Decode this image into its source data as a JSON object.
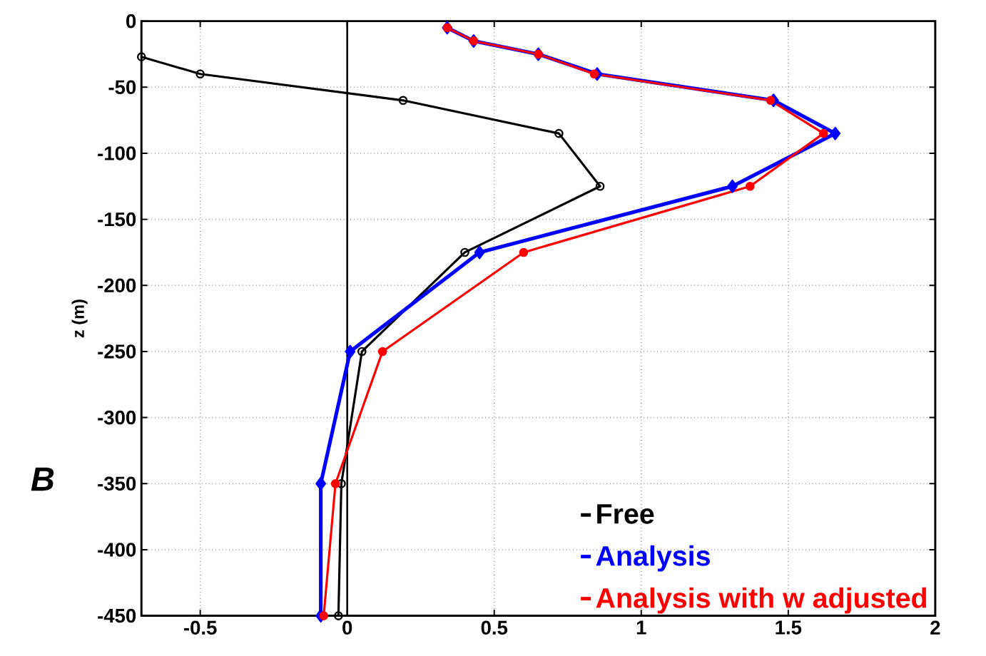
{
  "chart_data": {
    "type": "line",
    "ylabel": "z (m)",
    "annotations": [
      "B"
    ],
    "xlim": [
      -0.7,
      2
    ],
    "ylim": [
      -450,
      0
    ],
    "xticks": [
      -0.5,
      0,
      0.5,
      1,
      1.5,
      2
    ],
    "yticks": [
      0,
      -50,
      -100,
      -150,
      -200,
      -250,
      -300,
      -350,
      -400,
      -450
    ],
    "grid": true,
    "legend": "bottom right",
    "ref_lines": [
      {
        "axis": "x",
        "value": 0,
        "color": "#000000"
      }
    ],
    "series": [
      {
        "name": "Free",
        "color": "#000000",
        "marker": "circle",
        "x": [
          -0.7,
          -0.5,
          0.19,
          0.72,
          0.86,
          0.4,
          0.05,
          -0.02,
          -0.03
        ],
        "values": [
          -27,
          -40,
          -60,
          -85,
          -125,
          -175,
          -250,
          -350,
          -450
        ]
      },
      {
        "name": "Analysis",
        "color": "#0000ff",
        "marker": "diamond",
        "x": [
          0.34,
          0.43,
          0.65,
          0.85,
          1.45,
          1.66,
          1.31,
          0.45,
          0.01,
          -0.09,
          -0.09
        ],
        "values": [
          -5,
          -15,
          -25,
          -40,
          -60,
          -85,
          -125,
          -175,
          -250,
          -350,
          -450
        ]
      },
      {
        "name": "Analysis with w adjusted",
        "color": "#ff0000",
        "marker": "filled circle",
        "x": [
          0.34,
          0.43,
          0.65,
          0.84,
          1.44,
          1.62,
          1.37,
          0.6,
          0.12,
          -0.04,
          -0.08
        ],
        "values": [
          -5,
          -15,
          -25,
          -40,
          -60,
          -85,
          -125,
          -175,
          -250,
          -350,
          -450
        ]
      }
    ]
  }
}
